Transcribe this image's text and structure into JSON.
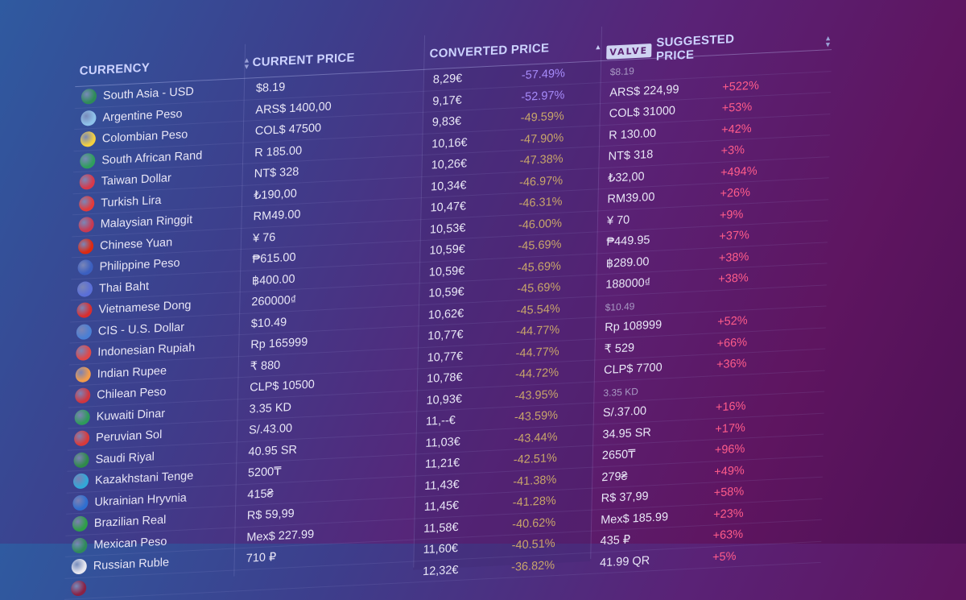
{
  "header": {
    "currency": "CURRENCY",
    "current_price": "CURRENT PRICE",
    "converted_price": "CONVERTED PRICE",
    "valve_logo": "VALVE",
    "suggested_price": "SUGGESTED PRICE"
  },
  "colors": {
    "pct_positive_high": "#a78bfa",
    "pct_normal": "#c8a56a",
    "diff_positive": "#ff5c8a"
  },
  "rows": [
    {
      "flag": "pakistan-flag-icon",
      "flag_color": "#2e8b57",
      "name": "South Asia - USD",
      "price": "$8.19",
      "conv": "8,29€",
      "pct": "-57.49%",
      "pct_hi": true,
      "sug": "$8.19",
      "sug_muted": true,
      "diff": ""
    },
    {
      "flag": "argentina-flag-icon",
      "flag_color": "#8fc3ea",
      "name": "Argentine Peso",
      "price": "ARS$ 1400,00",
      "conv": "9,17€",
      "pct": "-52.97%",
      "pct_hi": true,
      "sug": "ARS$ 224,99",
      "sug_muted": false,
      "diff": "+522%"
    },
    {
      "flag": "colombia-flag-icon",
      "flag_color": "#f4d03f",
      "name": "Colombian Peso",
      "price": "COL$ 47500",
      "conv": "9,83€",
      "pct": "-49.59%",
      "pct_hi": false,
      "sug": "COL$ 31000",
      "sug_muted": false,
      "diff": "+53%"
    },
    {
      "flag": "south-africa-flag-icon",
      "flag_color": "#2f9e5c",
      "name": "South African Rand",
      "price": "R 185.00",
      "conv": "10,16€",
      "pct": "-47.90%",
      "pct_hi": false,
      "sug": "R 130.00",
      "sug_muted": false,
      "diff": "+42%"
    },
    {
      "flag": "taiwan-flag-icon",
      "flag_color": "#d8394a",
      "name": "Taiwan Dollar",
      "price": "NT$ 328",
      "conv": "10,26€",
      "pct": "-47.38%",
      "pct_hi": false,
      "sug": "NT$ 318",
      "sug_muted": false,
      "diff": "+3%"
    },
    {
      "flag": "turkey-flag-icon",
      "flag_color": "#e23b3b",
      "name": "Turkish Lira",
      "price": "₺190,00",
      "conv": "10,34€",
      "pct": "-46.97%",
      "pct_hi": false,
      "sug": "₺32,00",
      "sug_muted": false,
      "diff": "+494%"
    },
    {
      "flag": "malaysia-flag-icon",
      "flag_color": "#c73a52",
      "name": "Malaysian Ringgit",
      "price": "RM49.00",
      "conv": "10,47€",
      "pct": "-46.31%",
      "pct_hi": false,
      "sug": "RM39.00",
      "sug_muted": false,
      "diff": "+26%"
    },
    {
      "flag": "china-flag-icon",
      "flag_color": "#de2910",
      "name": "Chinese Yuan",
      "price": "¥ 76",
      "conv": "10,53€",
      "pct": "-46.00%",
      "pct_hi": false,
      "sug": "¥ 70",
      "sug_muted": false,
      "diff": "+9%"
    },
    {
      "flag": "philippines-flag-icon",
      "flag_color": "#3b5fc0",
      "name": "Philippine Peso",
      "price": "₱615.00",
      "conv": "10,59€",
      "pct": "-45.69%",
      "pct_hi": false,
      "sug": "₱449.95",
      "sug_muted": false,
      "diff": "+37%"
    },
    {
      "flag": "thailand-flag-icon",
      "flag_color": "#5a6fd8",
      "name": "Thai Baht",
      "price": "฿400.00",
      "conv": "10,59€",
      "pct": "-45.69%",
      "pct_hi": false,
      "sug": "฿289.00",
      "sug_muted": false,
      "diff": "+38%"
    },
    {
      "flag": "vietnam-flag-icon",
      "flag_color": "#d92e2e",
      "name": "Vietnamese Dong",
      "price": "260000₫",
      "conv": "10,59€",
      "pct": "-45.69%",
      "pct_hi": false,
      "sug": "188000₫",
      "sug_muted": false,
      "diff": "+38%"
    },
    {
      "flag": "cis-flag-icon",
      "flag_color": "#4a7fd4",
      "name": "CIS - U.S. Dollar",
      "price": "$10.49",
      "conv": "10,62€",
      "pct": "-45.54%",
      "pct_hi": false,
      "sug": "$10.49",
      "sug_muted": true,
      "diff": ""
    },
    {
      "flag": "indonesia-flag-icon",
      "flag_color": "#e04848",
      "name": "Indonesian Rupiah",
      "price": "Rp 165999",
      "conv": "10,77€",
      "pct": "-44.77%",
      "pct_hi": false,
      "sug": "Rp 108999",
      "sug_muted": false,
      "diff": "+52%"
    },
    {
      "flag": "india-flag-icon",
      "flag_color": "#f39c4a",
      "name": "Indian Rupee",
      "price": "₹ 880",
      "conv": "10,77€",
      "pct": "-44.77%",
      "pct_hi": false,
      "sug": "₹ 529",
      "sug_muted": false,
      "diff": "+66%"
    },
    {
      "flag": "chile-flag-icon",
      "flag_color": "#d0363f",
      "name": "Chilean Peso",
      "price": "CLP$ 10500",
      "conv": "10,78€",
      "pct": "-44.72%",
      "pct_hi": false,
      "sug": "CLP$ 7700",
      "sug_muted": false,
      "diff": "+36%"
    },
    {
      "flag": "kuwait-flag-icon",
      "flag_color": "#2e9a5a",
      "name": "Kuwaiti Dinar",
      "price": "3.35 KD",
      "conv": "10,93€",
      "pct": "-43.95%",
      "pct_hi": false,
      "sug": "3.35 KD",
      "sug_muted": true,
      "diff": ""
    },
    {
      "flag": "peru-flag-icon",
      "flag_color": "#d93a3a",
      "name": "Peruvian Sol",
      "price": "S/.43.00",
      "conv": "11,--€",
      "pct": "-43.59%",
      "pct_hi": false,
      "sug": "S/.37.00",
      "sug_muted": false,
      "diff": "+16%"
    },
    {
      "flag": "saudi-flag-icon",
      "flag_color": "#2f8a4a",
      "name": "Saudi Riyal",
      "price": "40.95 SR",
      "conv": "11,03€",
      "pct": "-43.44%",
      "pct_hi": false,
      "sug": "34.95 SR",
      "sug_muted": false,
      "diff": "+17%"
    },
    {
      "flag": "kazakhstan-flag-icon",
      "flag_color": "#32a8d8",
      "name": "Kazakhstani Tenge",
      "price": "5200₸",
      "conv": "11,21€",
      "pct": "-42.51%",
      "pct_hi": false,
      "sug": "2650₸",
      "sug_muted": false,
      "diff": "+96%"
    },
    {
      "flag": "ukraine-flag-icon",
      "flag_color": "#2f6fd0",
      "name": "Ukrainian Hryvnia",
      "price": "415₴",
      "conv": "11,43€",
      "pct": "-41.38%",
      "pct_hi": false,
      "sug": "279₴",
      "sug_muted": false,
      "diff": "+49%"
    },
    {
      "flag": "brazil-flag-icon",
      "flag_color": "#2f9e48",
      "name": "Brazilian Real",
      "price": "R$ 59,99",
      "conv": "11,45€",
      "pct": "-41.28%",
      "pct_hi": false,
      "sug": "R$ 37,99",
      "sug_muted": false,
      "diff": "+58%"
    },
    {
      "flag": "mexico-flag-icon",
      "flag_color": "#2f8a5a",
      "name": "Mexican Peso",
      "price": "Mex$ 227.99",
      "conv": "11,58€",
      "pct": "-40.62%",
      "pct_hi": false,
      "sug": "Mex$ 185.99",
      "sug_muted": false,
      "diff": "+23%"
    },
    {
      "flag": "russia-flag-icon",
      "flag_color": "#e8e8f0",
      "name": "Russian Ruble",
      "price": "710 ₽",
      "conv": "11,60€",
      "pct": "-40.51%",
      "pct_hi": false,
      "sug": "435 ₽",
      "sug_muted": false,
      "diff": "+63%"
    },
    {
      "flag": "qatar-flag-icon",
      "flag_color": "#8a2245",
      "name": "",
      "price": "",
      "conv": "12,32€",
      "pct": "-36.82%",
      "pct_hi": false,
      "sug": "41.99 QR",
      "sug_muted": false,
      "diff": "+5%"
    }
  ]
}
